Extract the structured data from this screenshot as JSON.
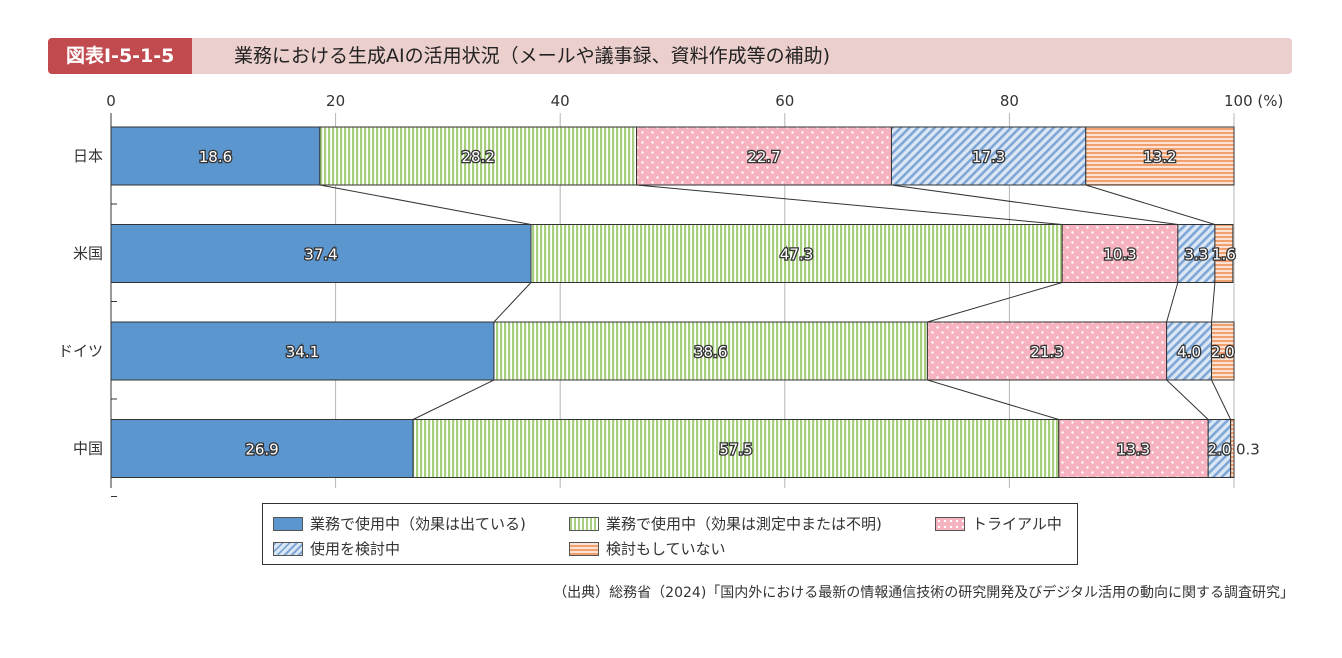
{
  "header": {
    "badge": "図表Ⅰ-5-1-5",
    "title": "業務における生成AIの活用状況（メールや議事録、資料作成等の補助)"
  },
  "source": "（出典）総務省（2024)「国内外における最新の情報通信技術の研究開発及びデジタル活用の動向に関する調査研究」",
  "chart_data": {
    "type": "bar",
    "orientation": "horizontal",
    "stacked": true,
    "categories": [
      "日本",
      "米国",
      "ドイツ",
      "中国"
    ],
    "xlim": [
      0,
      100
    ],
    "x_ticks": [
      "0",
      "20",
      "40",
      "60",
      "80",
      "100 (%)"
    ],
    "series": [
      {
        "name": "業務で使用中（効果は出ている)",
        "color": "#5b96cf",
        "pattern": "solid",
        "values": [
          18.6,
          37.4,
          34.1,
          26.9
        ]
      },
      {
        "name": "業務で使用中（効果は測定中または不明)",
        "color": "#a6cf7e",
        "pattern": "vertical-lines",
        "values": [
          28.2,
          47.3,
          38.6,
          57.5
        ]
      },
      {
        "name": "トライアル中",
        "color": "#f6b3bf",
        "pattern": "dots",
        "values": [
          22.7,
          10.3,
          21.3,
          13.3
        ]
      },
      {
        "name": "使用を検討中",
        "color": "#8fb4df",
        "pattern": "diagonal-lines",
        "values": [
          17.3,
          3.3,
          4.0,
          2.0
        ]
      },
      {
        "name": "検討もしていない",
        "color": "#f2a779",
        "pattern": "horizontal-lines",
        "values": [
          13.2,
          1.6,
          2.0,
          0.3
        ]
      }
    ],
    "data_labels": [
      [
        "18.6",
        "28.2",
        "22.7",
        "17.3",
        "13.2"
      ],
      [
        "37.4",
        "47.3",
        "10.3",
        "3.3",
        "1.6"
      ],
      [
        "34.1",
        "38.6",
        "21.3",
        "4.0",
        "2.0"
      ],
      [
        "26.9",
        "57.5",
        "13.3",
        "2.0",
        "0.3"
      ]
    ],
    "connector_lines": true,
    "legend_position": "bottom"
  }
}
